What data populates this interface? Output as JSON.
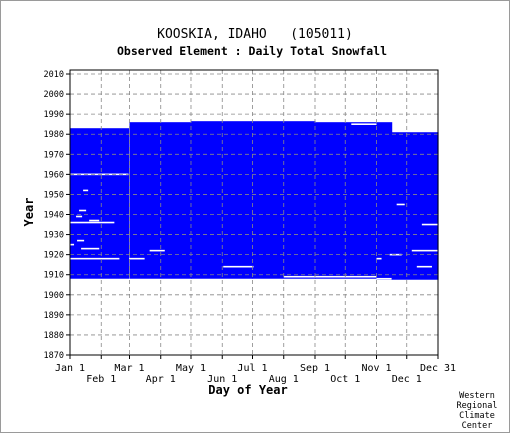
{
  "chart_data": {
    "type": "heatmap",
    "title": "KOOSKIA, IDAHO   (105011)",
    "subtitle": "Observed Element : Daily Total Snowfall",
    "xlabel": "Day of Year",
    "ylabel": "Year",
    "xlim": [
      1,
      366
    ],
    "ylim": [
      1870,
      2012
    ],
    "grid": true,
    "data_color": "#0000ff",
    "missing_color": "#ffffff",
    "x_ticks_upper": [
      {
        "label": "Jan 1",
        "day": 1
      },
      {
        "label": "Mar 1",
        "day": 60
      },
      {
        "label": "May 1",
        "day": 121
      },
      {
        "label": "Jul 1",
        "day": 182
      },
      {
        "label": "Sep 1",
        "day": 244
      },
      {
        "label": "Nov 1",
        "day": 305
      },
      {
        "label": "Dec 31",
        "day": 366
      }
    ],
    "x_ticks_lower": [
      {
        "label": "Feb 1",
        "day": 32
      },
      {
        "label": "Apr 1",
        "day": 91
      },
      {
        "label": "Jun 1",
        "day": 152
      },
      {
        "label": "Aug 1",
        "day": 213
      },
      {
        "label": "Oct 1",
        "day": 274
      },
      {
        "label": "Dec 1",
        "day": 335
      }
    ],
    "y_ticks": [
      2010,
      2000,
      1990,
      1980,
      1970,
      1960,
      1950,
      1940,
      1930,
      1920,
      1910,
      1900,
      1890,
      1880,
      1870
    ],
    "coverage": [
      {
        "start_day": 1,
        "end_day": 59,
        "start_year": 1908,
        "end_year": 1983
      },
      {
        "start_day": 60,
        "end_day": 121,
        "start_year": 1908,
        "end_year": 1986
      },
      {
        "start_day": 121,
        "end_day": 182,
        "start_year": 1908,
        "end_year": 1986.5
      },
      {
        "start_day": 182,
        "end_day": 244,
        "start_year": 1908,
        "end_year": 1986.5
      },
      {
        "start_day": 244,
        "end_day": 305,
        "start_year": 1908,
        "end_year": 1986
      },
      {
        "start_day": 305,
        "end_day": 320,
        "start_year": 1907.5,
        "end_year": 1986
      },
      {
        "start_day": 320,
        "end_day": 366,
        "start_year": 1907.5,
        "end_year": 1981
      }
    ],
    "gaps": [
      {
        "start_day": 1,
        "end_day": 59,
        "year": 1960
      },
      {
        "start_day": 14,
        "end_day": 19,
        "year": 1952
      },
      {
        "start_day": 10,
        "end_day": 17,
        "year": 1942
      },
      {
        "start_day": 7,
        "end_day": 13,
        "year": 1939
      },
      {
        "start_day": 20,
        "end_day": 30,
        "year": 1937
      },
      {
        "start_day": 1,
        "end_day": 45,
        "year": 1936
      },
      {
        "start_day": 8,
        "end_day": 15,
        "year": 1927
      },
      {
        "start_day": 1,
        "end_day": 5,
        "year": 1925
      },
      {
        "start_day": 12,
        "end_day": 30,
        "year": 1923
      },
      {
        "start_day": 1,
        "end_day": 50,
        "year": 1918
      },
      {
        "start_day": 60,
        "end_day": 75,
        "year": 1918
      },
      {
        "start_day": 80,
        "end_day": 95,
        "year": 1922
      },
      {
        "start_day": 153,
        "end_day": 183,
        "year": 1914
      },
      {
        "start_day": 213,
        "end_day": 305,
        "year": 1909
      },
      {
        "start_day": 305,
        "end_day": 320,
        "year": 1908
      },
      {
        "start_day": 280,
        "end_day": 305,
        "year": 1985
      },
      {
        "start_day": 335,
        "end_day": 345,
        "year": 1982
      },
      {
        "start_day": 350,
        "end_day": 366,
        "year": 1935
      },
      {
        "start_day": 340,
        "end_day": 366,
        "year": 1922
      },
      {
        "start_day": 345,
        "end_day": 360,
        "year": 1914
      },
      {
        "start_day": 318,
        "end_day": 330,
        "year": 1920
      },
      {
        "start_day": 325,
        "end_day": 333,
        "year": 1945
      },
      {
        "start_day": 305,
        "end_day": 310,
        "year": 1918
      }
    ]
  },
  "credit": [
    "Western",
    "Regional",
    "Climate",
    "Center"
  ]
}
